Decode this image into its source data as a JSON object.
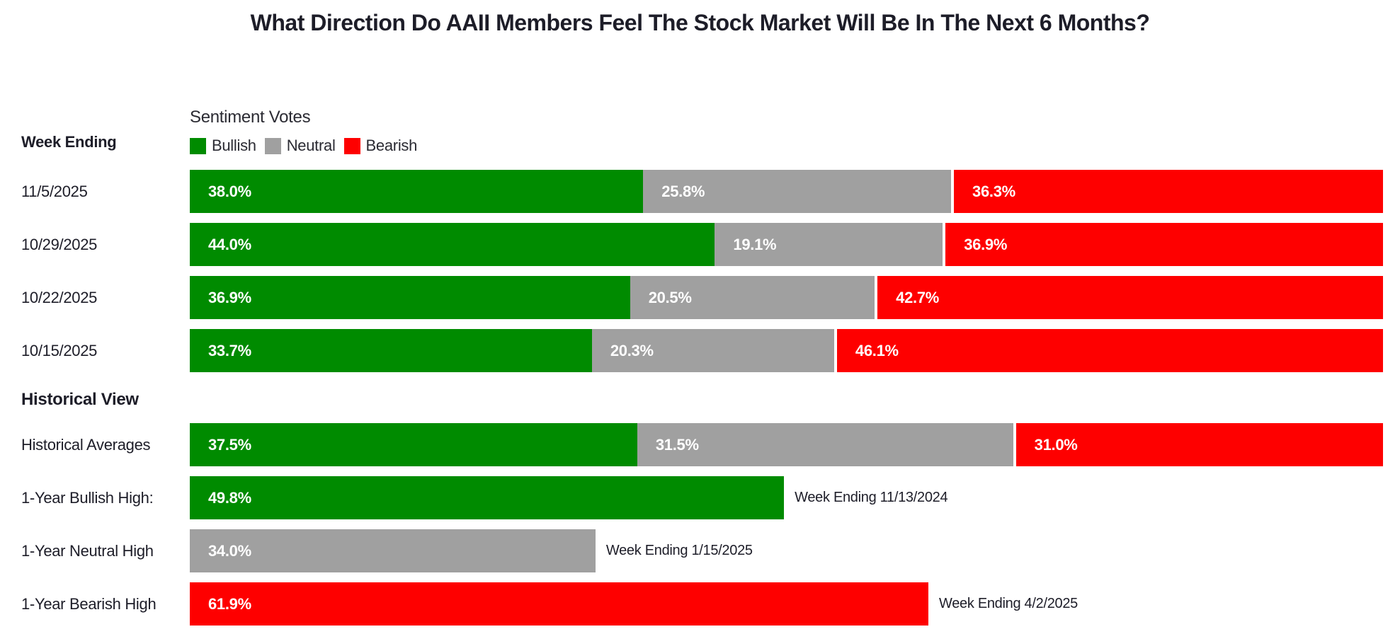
{
  "title": "What Direction Do AAII Members Feel The Stock Market Will Be In The Next 6 Months?",
  "left_column_header": "Week Ending",
  "section_heading": "Historical View",
  "legend": {
    "title": "Sentiment Votes",
    "items": [
      {
        "name": "bullish",
        "label": "Bullish",
        "color": "#008b00"
      },
      {
        "name": "neutral",
        "label": "Neutral",
        "color": "#a0a0a0"
      },
      {
        "name": "bearish",
        "label": "Bearish",
        "color": "#fe0000"
      }
    ]
  },
  "colors": {
    "bullish": "#008b00",
    "neutral": "#a0a0a0",
    "bearish": "#fe0000",
    "text": "#1d1d28",
    "bar_label": "#ffffff",
    "background": "#ffffff"
  },
  "chart_data": {
    "type": "bar",
    "orientation": "horizontal",
    "stacked": true,
    "unit": "%",
    "value_range": [
      0,
      100
    ],
    "series_order": [
      "bullish",
      "neutral",
      "bearish"
    ],
    "weekly_rows": [
      {
        "label": "11/5/2025",
        "bullish": 38.0,
        "neutral": 25.8,
        "bearish": 36.3
      },
      {
        "label": "10/29/2025",
        "bullish": 44.0,
        "neutral": 19.1,
        "bearish": 36.9
      },
      {
        "label": "10/22/2025",
        "bullish": 36.9,
        "neutral": 20.5,
        "bearish": 42.7
      },
      {
        "label": "10/15/2025",
        "bullish": 33.7,
        "neutral": 20.3,
        "bearish": 46.1
      }
    ],
    "historical_rows": [
      {
        "label": "Historical Averages",
        "kind": "stacked",
        "bullish": 37.5,
        "neutral": 31.5,
        "bearish": 31.0
      },
      {
        "label": "1-Year Bullish High:",
        "kind": "single",
        "series": "bullish",
        "value": 49.8,
        "annotation": "Week Ending 11/13/2024"
      },
      {
        "label": "1-Year Neutral High",
        "kind": "single",
        "series": "neutral",
        "value": 34.0,
        "annotation": "Week Ending 1/15/2025"
      },
      {
        "label": "1-Year Bearish High",
        "kind": "single",
        "series": "bearish",
        "value": 61.9,
        "annotation": "Week Ending 4/2/2025"
      }
    ]
  }
}
